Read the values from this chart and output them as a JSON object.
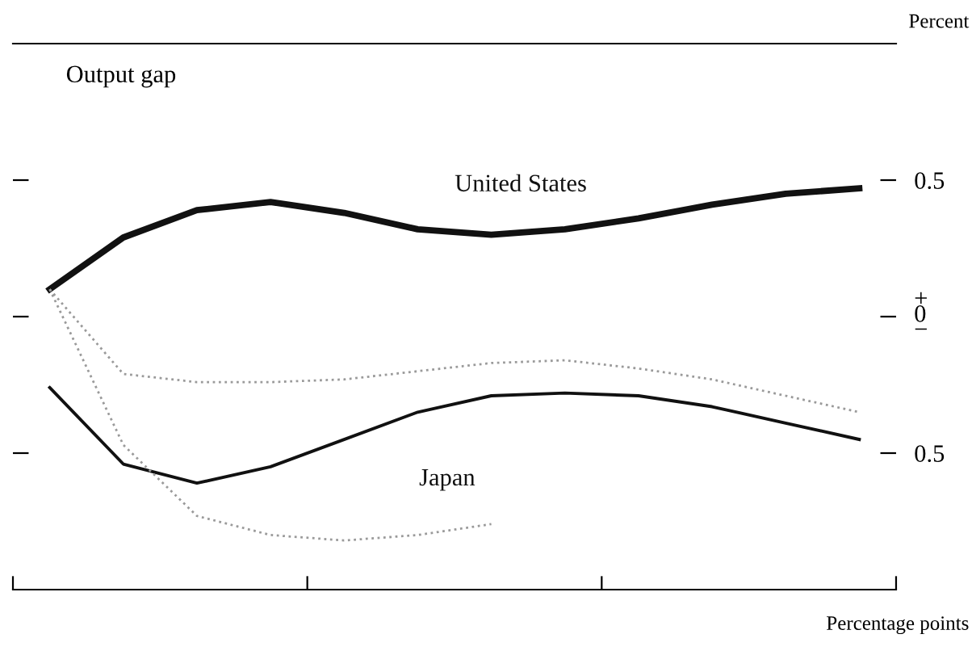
{
  "chart_data": {
    "type": "line",
    "title": "Output gap",
    "ylabel": "Percent",
    "annotations": [
      "Percentage points"
    ],
    "categories": [
      null,
      null,
      null,
      null,
      null,
      null,
      null,
      null,
      null,
      null,
      null,
      null
    ],
    "series": [
      {
        "name": "United States",
        "color": "#111111",
        "values": [
          0.1,
          0.29,
          0.39,
          0.42,
          0.38,
          0.32,
          0.3,
          0.32,
          0.36,
          0.41,
          0.45,
          0.47
        ]
      },
      {
        "name": "Japan",
        "color": "#111111",
        "values": [
          -0.26,
          -0.54,
          -0.61,
          -0.55,
          -0.45,
          -0.35,
          -0.29,
          -0.28,
          -0.29,
          -0.33,
          -0.39,
          -0.45
        ]
      },
      {
        "color": "#9a9a9a",
        "line_style": "dotted",
        "values": [
          0.1,
          -0.21,
          -0.24,
          -0.24,
          -0.23,
          -0.2,
          -0.17,
          -0.16,
          -0.19,
          -0.23,
          -0.29,
          -0.35
        ]
      },
      {
        "color": "#9a9a9a",
        "line_style": "dotted",
        "values": [
          0.1,
          -0.47,
          -0.73,
          -0.8,
          -0.82,
          -0.8,
          -0.76,
          null,
          null,
          null,
          null,
          null
        ]
      }
    ],
    "ylim": [
      -1,
      1
    ],
    "yticks": [
      {
        "value": 0.5,
        "label": "0.5"
      },
      {
        "value": 0,
        "label": "+\n0\n−"
      },
      {
        "value": -0.5,
        "label": "0.5"
      }
    ],
    "tick_labels": "y",
    "grid": false,
    "legend": false,
    "marker": "none",
    "line_style": "solid"
  }
}
